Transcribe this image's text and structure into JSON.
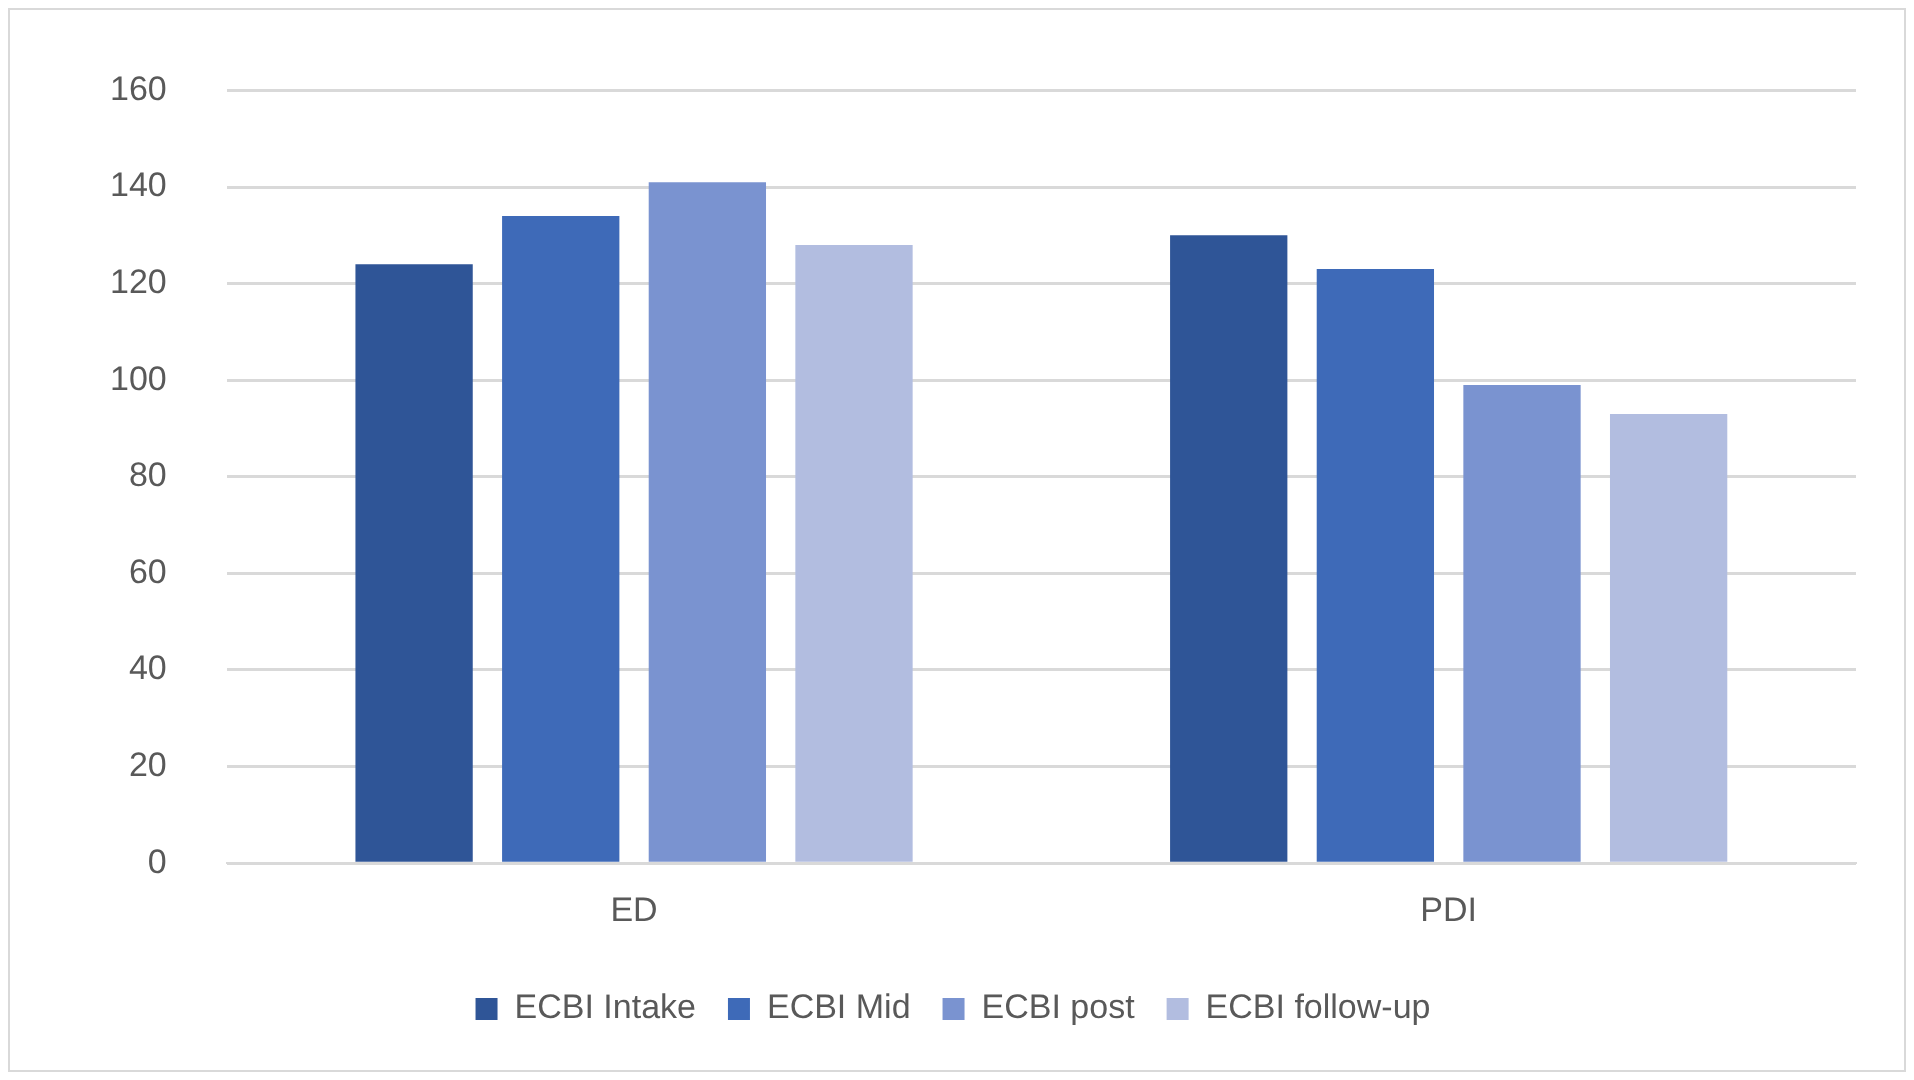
{
  "chart_data": {
    "type": "bar",
    "categories": [
      "ED",
      "PDI"
    ],
    "series": [
      {
        "name": "ECBI Intake",
        "color": "#2f5597",
        "values": [
          124,
          130
        ]
      },
      {
        "name": "ECBI Mid",
        "color": "#3e6ab8",
        "values": [
          134,
          123
        ]
      },
      {
        "name": "ECBI post",
        "color": "#7a93d0",
        "values": [
          141,
          99
        ]
      },
      {
        "name": "ECBI follow-up",
        "color": "#b2bde0",
        "values": [
          128,
          93
        ]
      }
    ],
    "ylim": [
      0,
      160
    ],
    "yticks": [
      0,
      20,
      40,
      60,
      80,
      100,
      120,
      140,
      160
    ],
    "grid": "y",
    "legend": "bottom"
  }
}
